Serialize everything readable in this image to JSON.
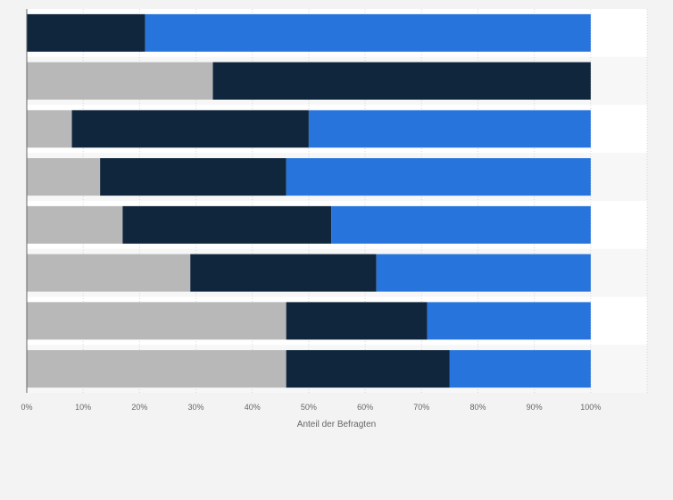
{
  "chart_data": {
    "type": "bar",
    "orientation": "horizontal",
    "stacked": true,
    "categories": [
      "",
      "",
      "",
      "",
      "",
      "",
      "",
      ""
    ],
    "series": [
      {
        "name": "",
        "color": "#b8b8b8",
        "values": [
          0,
          33,
          8,
          13,
          17,
          29,
          46,
          46
        ]
      },
      {
        "name": "",
        "color": "#10263d",
        "values": [
          21,
          67,
          42,
          33,
          37,
          33,
          25,
          29
        ]
      },
      {
        "name": "",
        "color": "#2775dc",
        "values": [
          79,
          0,
          50,
          54,
          46,
          38,
          29,
          25
        ]
      }
    ],
    "xticks": [
      "0%",
      "10%",
      "20%",
      "30%",
      "40%",
      "50%",
      "60%",
      "70%",
      "80%",
      "90%",
      "100%"
    ],
    "xlim": [
      0,
      110
    ],
    "xlabel": "Anteil der Befragten",
    "grid": true
  }
}
